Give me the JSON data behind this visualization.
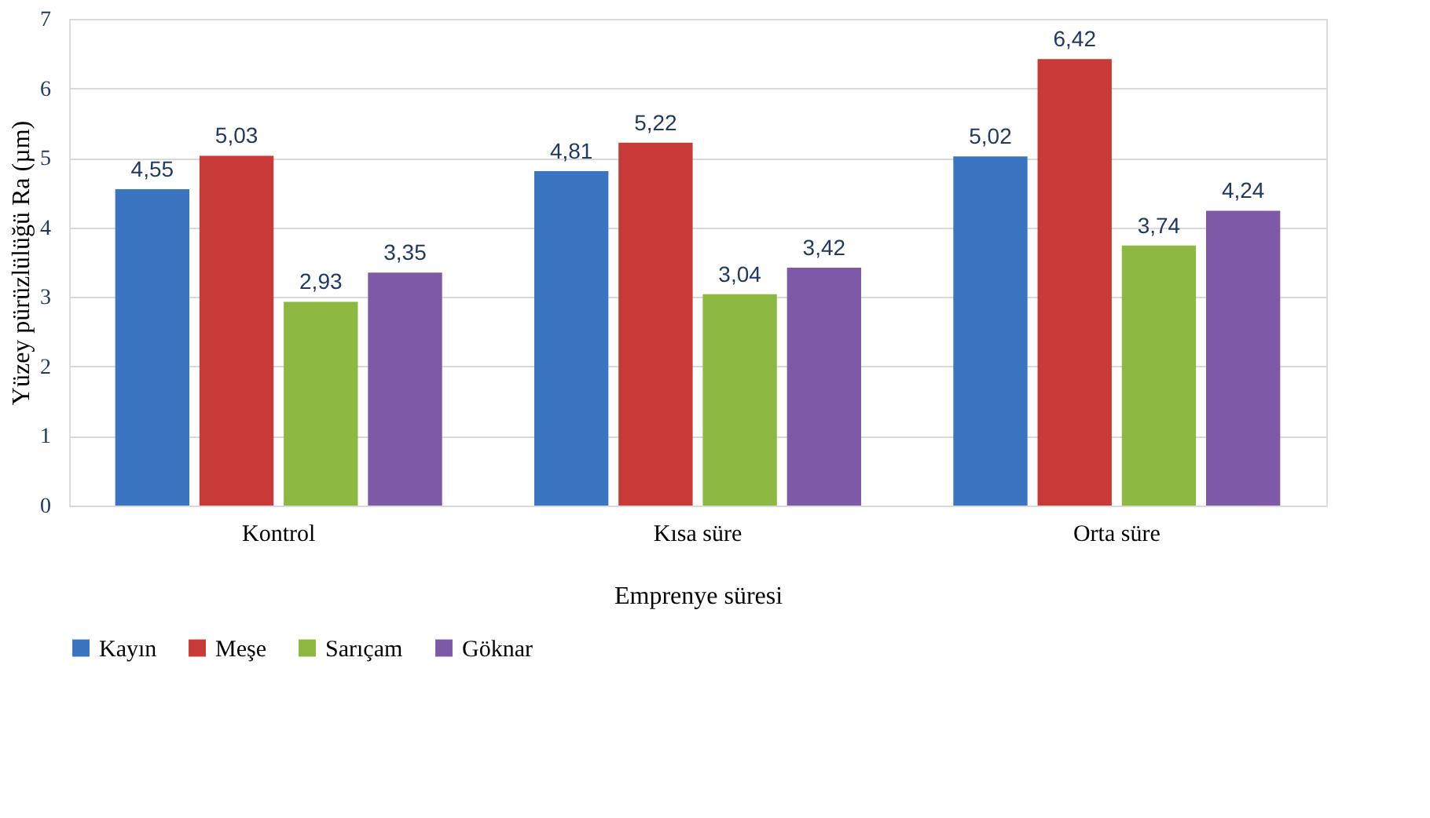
{
  "chart_data": {
    "type": "bar",
    "xlabel": "Emprenye süresi",
    "ylabel": "Yüzey pürüzlülüğü Ra (µm)",
    "categories": [
      "Kontrol",
      "Kısa süre",
      "Orta süre"
    ],
    "series": [
      {
        "name": "Kayın",
        "color": "#3b74c0",
        "values": [
          4.55,
          4.81,
          5.02
        ],
        "value_labels": [
          "4,55",
          "4,81",
          "5,02"
        ]
      },
      {
        "name": "Meşe",
        "color": "#c73a37",
        "values": [
          5.03,
          5.22,
          6.42
        ],
        "value_labels": [
          "5,03",
          "5,22",
          "6,42"
        ]
      },
      {
        "name": "Sarıçam",
        "color": "#8db842",
        "values": [
          2.93,
          3.04,
          3.74
        ],
        "value_labels": [
          "2,93",
          "3,04",
          "3,74"
        ]
      },
      {
        "name": "Göknar",
        "color": "#7d59a8",
        "values": [
          3.35,
          3.42,
          4.24
        ],
        "value_labels": [
          "3,35",
          "3,42",
          "4,24"
        ]
      }
    ],
    "ylim": [
      0,
      7
    ],
    "yticks": [
      0,
      1,
      2,
      3,
      4,
      5,
      6,
      7
    ],
    "grid": "y",
    "legend": "bottom"
  }
}
